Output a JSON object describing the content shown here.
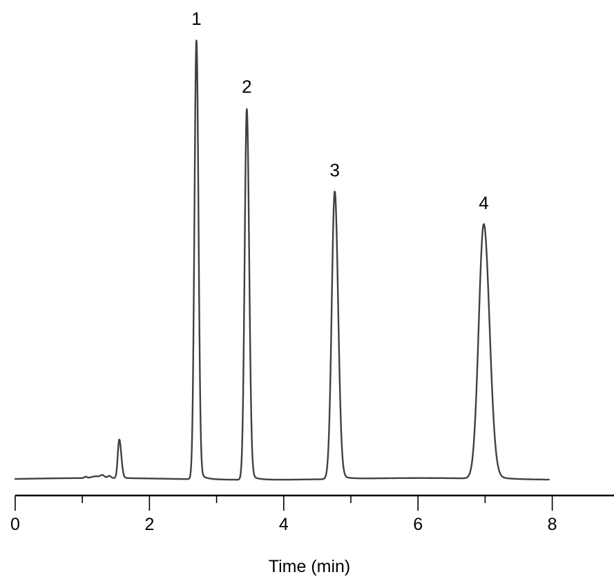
{
  "colors": {
    "trace": "#404040",
    "axis": "#000000",
    "background": "#ffffff"
  },
  "chart_data": {
    "type": "line",
    "xlabel": "Time (min)",
    "ylabel": "",
    "xlim": [
      0,
      9
    ],
    "x_major_ticks": [
      0,
      2,
      4,
      6,
      8
    ],
    "x_minor_ticks": [
      1,
      3,
      5,
      7
    ],
    "x_tick_labels": [
      "0",
      "2",
      "4",
      "6",
      "8"
    ],
    "y_axis_shown": false,
    "grid": false,
    "trace_range": [
      0,
      7.95
    ],
    "baseline": 0,
    "peaks": [
      {
        "label": "",
        "rt": 1.55,
        "height": 0.088
      },
      {
        "label": "1",
        "rt": 2.7,
        "height": 1.0
      },
      {
        "label": "2",
        "rt": 3.45,
        "height": 0.845
      },
      {
        "label": "3",
        "rt": 4.76,
        "height": 0.655
      },
      {
        "label": "4",
        "rt": 6.98,
        "height": 0.58
      }
    ]
  }
}
